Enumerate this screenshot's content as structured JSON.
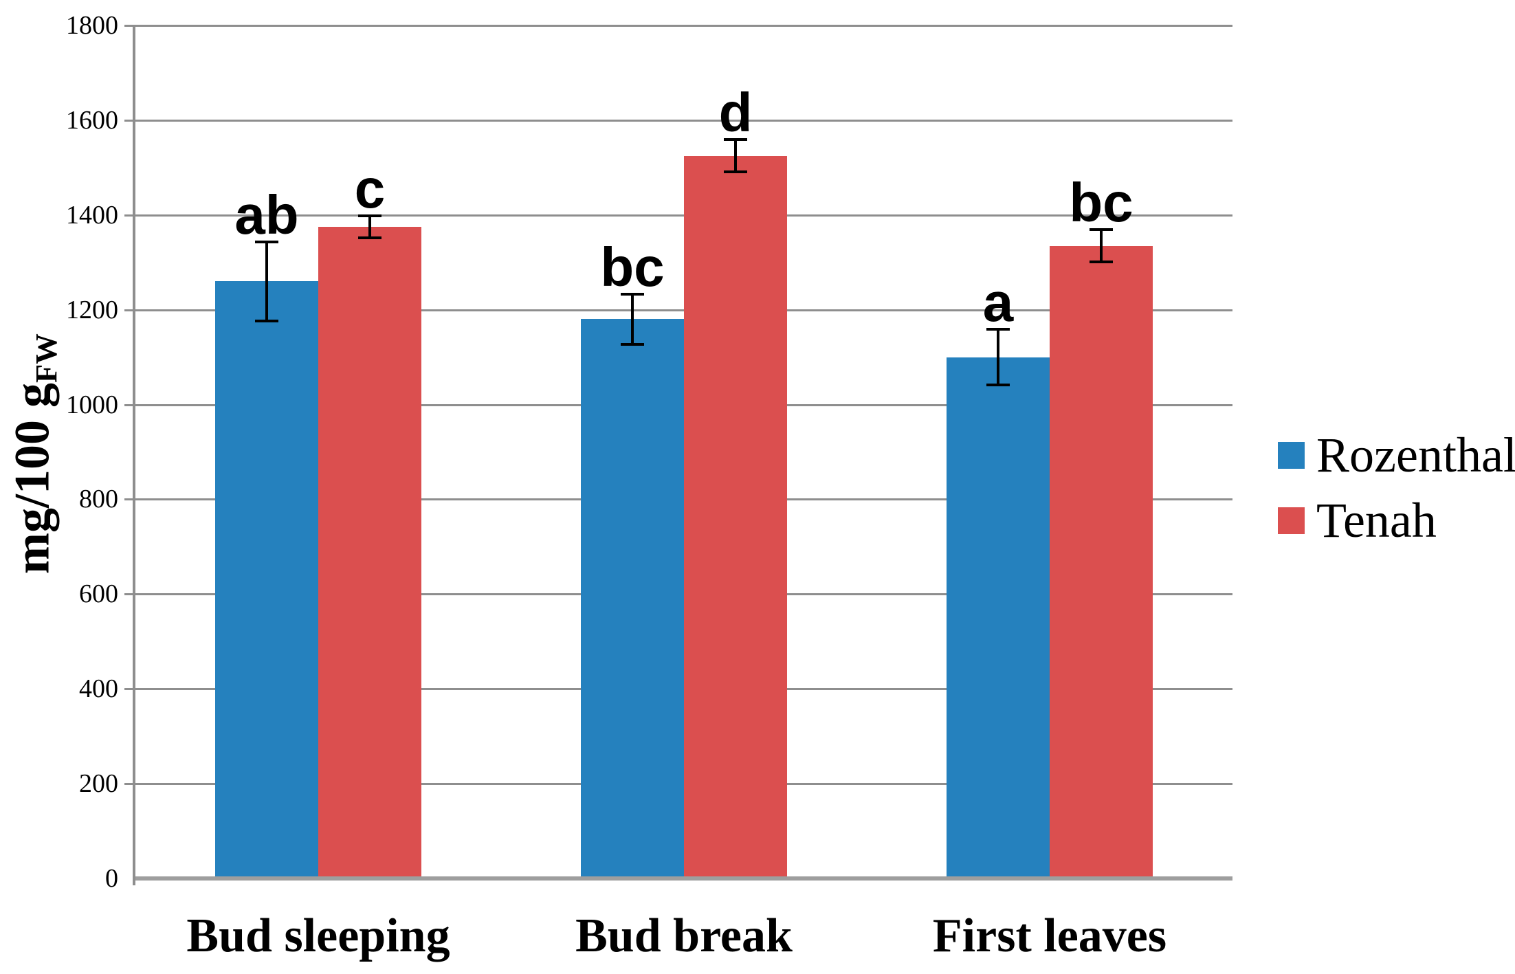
{
  "chart_data": {
    "type": "bar",
    "title": "",
    "ylabel_main": "mg/100 g",
    "ylabel_sub": "FW",
    "xlabel": "",
    "categories": [
      "Bud sleeping",
      "Bud break",
      "First leaves"
    ],
    "series": [
      {
        "name": "Rozenthal",
        "color": "#2581BE",
        "values": [
          1260,
          1180,
          1100
        ],
        "errors": [
          85,
          55,
          60
        ],
        "sig_letters": [
          "ab",
          "bc",
          "a"
        ]
      },
      {
        "name": "Tenah",
        "color": "#DB4F4F",
        "values": [
          1375,
          1525,
          1335
        ],
        "errors": [
          25,
          35,
          35
        ],
        "sig_letters": [
          "c",
          "d",
          "bc"
        ]
      }
    ],
    "ylim": [
      0,
      1800
    ],
    "ytick_step": 200,
    "yticks": [
      "0",
      "200",
      "400",
      "600",
      "800",
      "1000",
      "1200",
      "1400",
      "1600",
      "1800"
    ],
    "grid": true,
    "legend_position": "right",
    "axis_color": "#8E8E8E",
    "error_bar_color": "#000000"
  },
  "y_axis": {
    "title_main": "mg/100 g",
    "title_sub": "FW"
  },
  "legend": {
    "items": [
      {
        "label": "Rozenthal",
        "color": "#2581BE"
      },
      {
        "label": "Tenah",
        "color": "#DB4F4F"
      }
    ]
  }
}
